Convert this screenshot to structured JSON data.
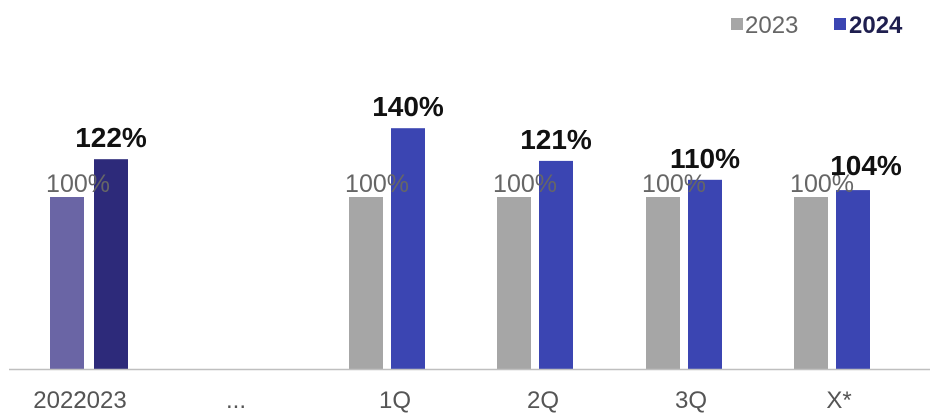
{
  "chart_data": {
    "type": "bar",
    "categories": [
      "2022",
      "2023",
      "...",
      "1Q",
      "2Q",
      "3Q",
      "X*"
    ],
    "ylim": [
      0,
      160
    ],
    "grid": false,
    "legend_position": "top-right",
    "legend": [
      {
        "name": "2023",
        "color": "#a6a6a6",
        "bold": false
      },
      {
        "name": "2024",
        "color": "#3b45b2",
        "bold": true
      }
    ],
    "bars": [
      {
        "category": "2022",
        "value": 100,
        "label": "100%",
        "color": "#6a65a5",
        "label_style": "light"
      },
      {
        "category": "2023",
        "value": 122,
        "label": "122%",
        "color": "#2d2a7a",
        "label_style": "bold"
      },
      {
        "category": "1Q",
        "series": "2023",
        "value": 100,
        "label": "100%",
        "color": "#a6a6a6",
        "label_style": "light"
      },
      {
        "category": "1Q",
        "series": "2024",
        "value": 140,
        "label": "140%",
        "color": "#3b45b2",
        "label_style": "bold"
      },
      {
        "category": "2Q",
        "series": "2023",
        "value": 100,
        "label": "100%",
        "color": "#a6a6a6",
        "label_style": "light"
      },
      {
        "category": "2Q",
        "series": "2024",
        "value": 121,
        "label": "121%",
        "color": "#3b45b2",
        "label_style": "bold"
      },
      {
        "category": "3Q",
        "series": "2023",
        "value": 100,
        "label": "100%",
        "color": "#a6a6a6",
        "label_style": "light"
      },
      {
        "category": "3Q",
        "series": "2024",
        "value": 110,
        "label": "110%",
        "color": "#3b45b2",
        "label_style": "bold"
      },
      {
        "category": "X*",
        "series": "2023",
        "value": 100,
        "label": "100%",
        "color": "#a6a6a6",
        "label_style": "light"
      },
      {
        "category": "X*",
        "series": "2024",
        "value": 104,
        "label": "104%",
        "color": "#3b45b2",
        "label_style": "bold"
      }
    ],
    "axis_color": "#bfbfbf"
  }
}
